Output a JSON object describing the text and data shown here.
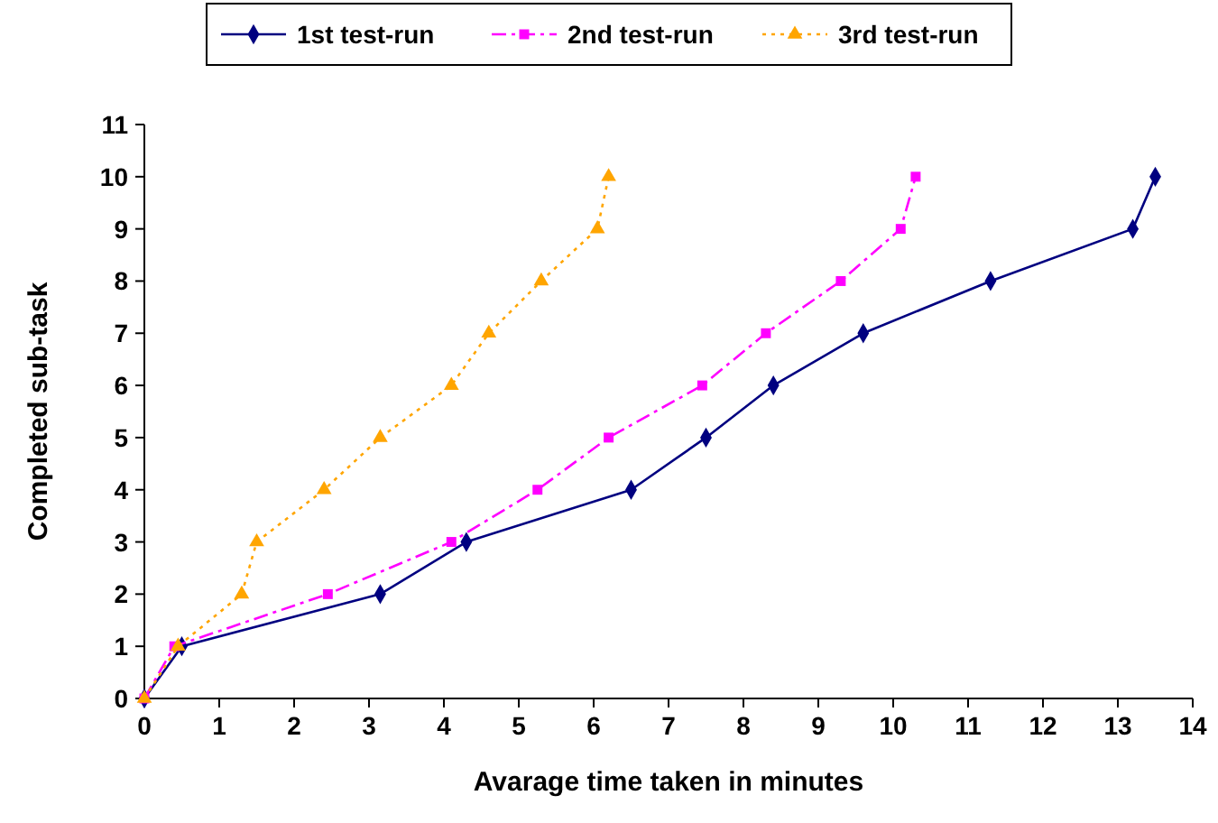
{
  "chart_data": {
    "type": "line",
    "xlabel": "Avarage time taken in minutes",
    "ylabel": "Completed sub-task",
    "xlim": [
      0,
      14
    ],
    "ylim": [
      0,
      11
    ],
    "xticks": [
      0,
      1,
      2,
      3,
      4,
      5,
      6,
      7,
      8,
      9,
      10,
      11,
      12,
      13,
      14
    ],
    "yticks": [
      0,
      1,
      2,
      3,
      4,
      5,
      6,
      7,
      8,
      9,
      10,
      11
    ],
    "grid": false,
    "legend": "top",
    "series": [
      {
        "name": "1st test-run",
        "color": "#000080",
        "marker": "diamond",
        "line_style": "solid",
        "x": [
          0,
          0.5,
          3.15,
          4.3,
          6.5,
          7.5,
          8.4,
          9.6,
          11.3,
          13.2,
          13.5
        ],
        "values": [
          0,
          1,
          2,
          3,
          4,
          5,
          6,
          7,
          8,
          9,
          10
        ]
      },
      {
        "name": "2nd test-run",
        "color": "#ff00ff",
        "marker": "square",
        "line_style": "dashed",
        "x": [
          0,
          0.4,
          2.45,
          4.1,
          5.25,
          6.2,
          7.45,
          8.3,
          9.3,
          10.1,
          10.3
        ],
        "values": [
          0,
          1,
          2,
          3,
          4,
          5,
          6,
          7,
          8,
          9,
          10
        ]
      },
      {
        "name": "3rd test-run",
        "color": "#ffa500",
        "marker": "triangle",
        "line_style": "dotted",
        "x": [
          0,
          0.45,
          1.3,
          1.5,
          2.4,
          3.15,
          4.1,
          4.6,
          5.3,
          6.05,
          6.2
        ],
        "values": [
          0,
          1,
          2,
          3,
          4,
          5,
          6,
          7,
          8,
          9,
          10
        ]
      }
    ]
  }
}
